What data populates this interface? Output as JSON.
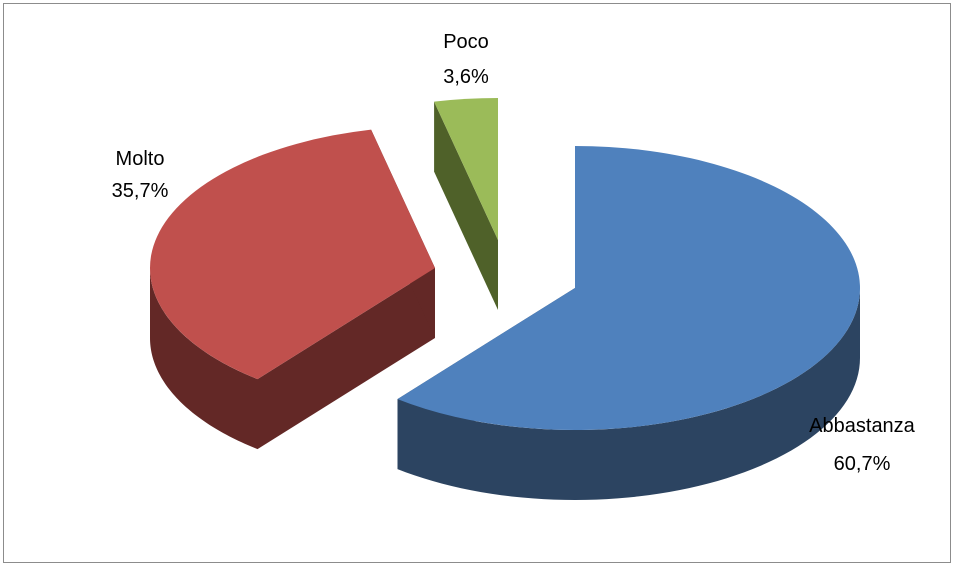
{
  "chart_data": {
    "type": "pie",
    "title": "",
    "legend": "none",
    "slices": [
      {
        "label": "Abbastanza",
        "value": 60.7,
        "value_label": "60,7%",
        "color": "#4F81BD",
        "side_color": "#2C4461"
      },
      {
        "label": "Molto",
        "value": 35.7,
        "value_label": "35,7%",
        "color": "#C0504D",
        "side_color": "#632826"
      },
      {
        "label": "Poco",
        "value": 3.6,
        "value_label": "3,6%",
        "color": "#9BBB59",
        "side_color": "#4F6129"
      }
    ]
  }
}
